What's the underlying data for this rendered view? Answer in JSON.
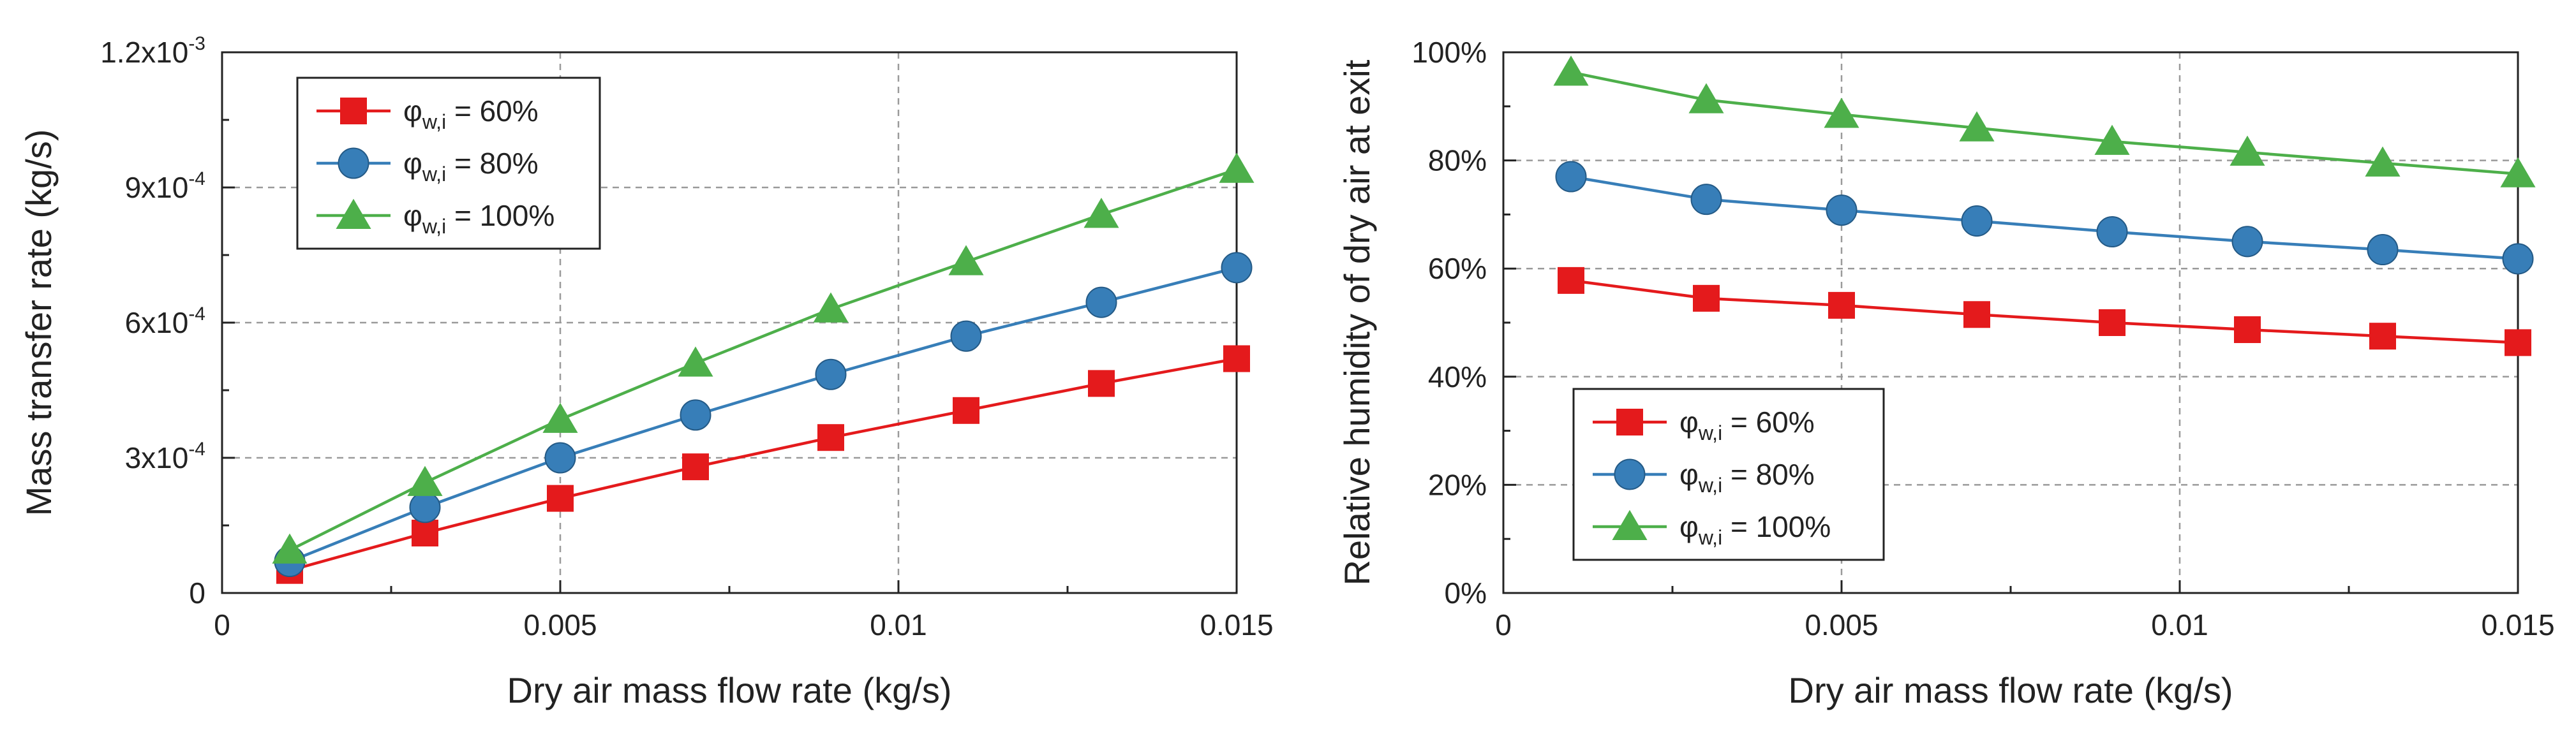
{
  "chart_data": [
    {
      "type": "line",
      "xlabel": "Dry air mass flow rate (kg/s)",
      "ylabel": "Mass transfer rate (kg/s)",
      "xlim": [
        0,
        0.015
      ],
      "ylim": [
        0,
        0.0012
      ],
      "x_ticks": [
        0,
        0.005,
        0.01,
        0.015
      ],
      "x_tick_labels": [
        "0",
        "0.005",
        "0.01",
        "0.015"
      ],
      "y_ticks": [
        0,
        0.0003,
        0.0006,
        0.0009,
        0.0012
      ],
      "y_tick_labels": [
        {
          "base": "0",
          "exp": ""
        },
        {
          "base": "3x10",
          "exp": "-4"
        },
        {
          "base": "6x10",
          "exp": "-4"
        },
        {
          "base": "9x10",
          "exp": "-4"
        },
        {
          "base": "1.2x10",
          "exp": "-3"
        }
      ],
      "grid": true,
      "legend_position": "top-left",
      "x": [
        0.001,
        0.003,
        0.005,
        0.007,
        0.009,
        0.011,
        0.013,
        0.015
      ],
      "series": [
        {
          "name": "φw,i = 60%",
          "label_main": "φ",
          "label_sub": "w,i",
          "label_rest": " = 60%",
          "color": "#e41a1c",
          "marker": "square",
          "values": [
            5e-05,
            0.000133,
            0.00021,
            0.00028,
            0.000345,
            0.000405,
            0.000465,
            0.00052
          ]
        },
        {
          "name": "φw,i = 80%",
          "label_main": "φ",
          "label_sub": "w,i",
          "label_rest": " = 80%",
          "color": "#377eb8",
          "marker": "circle",
          "values": [
            7e-05,
            0.00019,
            0.0003,
            0.000395,
            0.000485,
            0.00057,
            0.000645,
            0.000722
          ]
        },
        {
          "name": "φw,i = 100%",
          "label_main": "φ",
          "label_sub": "w,i",
          "label_rest": " = 100%",
          "color": "#4daf4a",
          "marker": "triangle",
          "values": [
            9.5e-05,
            0.000245,
            0.000385,
            0.00051,
            0.00063,
            0.000735,
            0.00084,
            0.00094
          ]
        }
      ]
    },
    {
      "type": "line",
      "xlabel": "Dry air mass flow rate (kg/s)",
      "ylabel": "Relative humidity of dry air at exit",
      "xlim": [
        0,
        0.015
      ],
      "ylim": [
        0,
        100
      ],
      "x_ticks": [
        0,
        0.005,
        0.01,
        0.015
      ],
      "x_tick_labels": [
        "0",
        "0.005",
        "0.01",
        "0.015"
      ],
      "y_ticks": [
        0,
        20,
        40,
        60,
        80,
        100
      ],
      "y_tick_labels": [
        {
          "base": "0%",
          "exp": ""
        },
        {
          "base": "20%",
          "exp": ""
        },
        {
          "base": "40%",
          "exp": ""
        },
        {
          "base": "60%",
          "exp": ""
        },
        {
          "base": "80%",
          "exp": ""
        },
        {
          "base": "100%",
          "exp": ""
        }
      ],
      "grid": true,
      "legend_position": "bottom-left",
      "x": [
        0.001,
        0.003,
        0.005,
        0.007,
        0.009,
        0.011,
        0.013,
        0.015
      ],
      "series": [
        {
          "name": "φw,i = 60%",
          "label_main": "φ",
          "label_sub": "w,i",
          "label_rest": " = 60%",
          "color": "#e41a1c",
          "marker": "square",
          "values": [
            57.8,
            54.5,
            53.2,
            51.5,
            50.0,
            48.7,
            47.5,
            46.3
          ]
        },
        {
          "name": "φw,i = 80%",
          "label_main": "φ",
          "label_sub": "w,i",
          "label_rest": " = 80%",
          "color": "#377eb8",
          "marker": "circle",
          "values": [
            77.0,
            72.8,
            70.8,
            68.8,
            66.8,
            65.0,
            63.5,
            61.8
          ]
        },
        {
          "name": "φw,i = 100%",
          "label_main": "φ",
          "label_sub": "w,i",
          "label_rest": " = 100%",
          "color": "#4daf4a",
          "marker": "triangle",
          "values": [
            96.3,
            91.2,
            88.5,
            86.0,
            83.5,
            81.5,
            79.5,
            77.5
          ]
        }
      ]
    }
  ]
}
